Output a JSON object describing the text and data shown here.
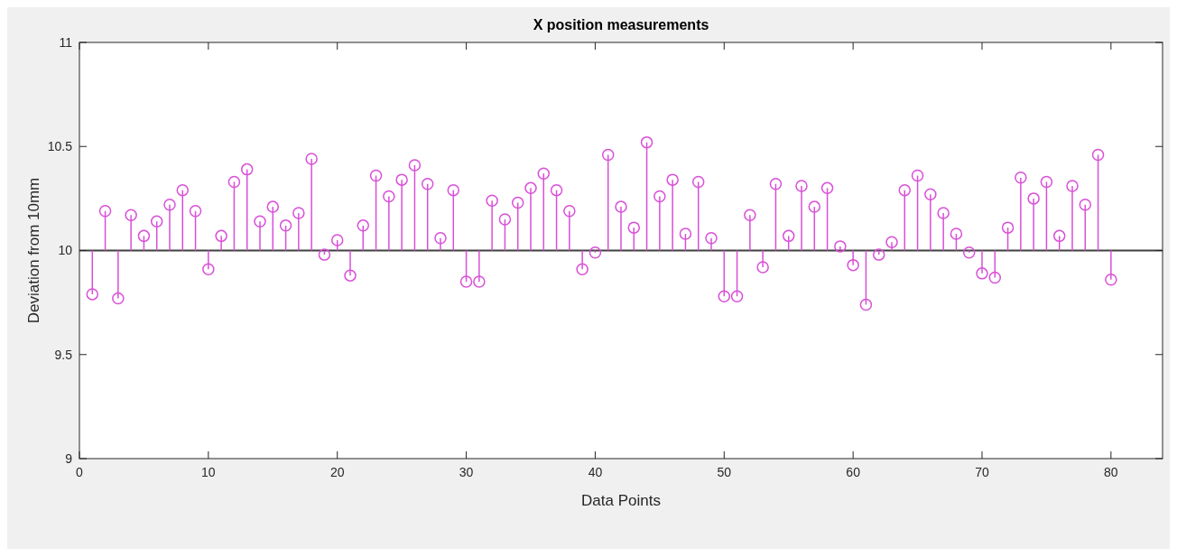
{
  "chart_data": {
    "type": "lollipop",
    "title": "X position measurements",
    "xlabel": "Data Points",
    "ylabel": "Deviation from 10mm",
    "x": [
      1,
      2,
      3,
      4,
      5,
      6,
      7,
      8,
      9,
      10,
      11,
      12,
      13,
      14,
      15,
      16,
      17,
      18,
      19,
      20,
      21,
      22,
      23,
      24,
      25,
      26,
      27,
      28,
      29,
      30,
      31,
      32,
      33,
      34,
      35,
      36,
      37,
      38,
      39,
      40,
      41,
      42,
      43,
      44,
      45,
      46,
      47,
      48,
      49,
      50,
      51,
      52,
      53,
      54,
      55,
      56,
      57,
      58,
      59,
      60,
      61,
      62,
      63,
      64,
      65,
      66,
      67,
      68,
      69,
      70,
      71,
      72,
      73,
      74,
      75,
      76,
      77,
      78,
      79,
      80
    ],
    "series": [
      {
        "color": "#d94fd8",
        "values": [
          9.79,
          10.19,
          9.77,
          10.17,
          10.07,
          10.14,
          10.22,
          10.29,
          10.19,
          9.91,
          10.07,
          10.33,
          10.39,
          10.14,
          10.21,
          10.12,
          10.18,
          10.44,
          9.98,
          10.05,
          9.88,
          10.12,
          10.36,
          10.26,
          10.34,
          10.41,
          10.32,
          10.06,
          10.29,
          9.85,
          9.85,
          10.24,
          10.15,
          10.23,
          10.3,
          10.37,
          10.29,
          10.19,
          9.91,
          9.99,
          10.46,
          10.21,
          10.11,
          10.52,
          10.26,
          10.34,
          10.08,
          10.33,
          10.06,
          9.78,
          9.78,
          10.17,
          9.92,
          10.32,
          10.07,
          10.31,
          10.21,
          10.3,
          10.02,
          9.93,
          9.74,
          9.98,
          10.04,
          10.29,
          10.36,
          10.27,
          10.18,
          10.08,
          9.99,
          9.89,
          9.87,
          10.11,
          10.35,
          10.25,
          10.33,
          10.07,
          10.31,
          10.22,
          10.46,
          9.86
        ]
      }
    ],
    "xlim": [
      0,
      84
    ],
    "xticks": [
      0,
      10,
      20,
      30,
      40,
      50,
      60,
      70,
      80
    ],
    "ylim": [
      9,
      11
    ],
    "yticks": [
      9,
      9.5,
      10,
      10.5,
      11
    ],
    "ref_lines": [
      {
        "axis": "y",
        "value": 10,
        "color": "#404040"
      }
    ],
    "marker": "circle",
    "grid": false
  }
}
